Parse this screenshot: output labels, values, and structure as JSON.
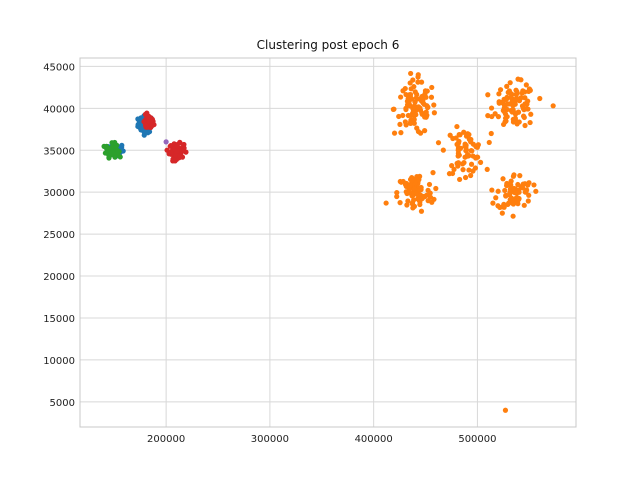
{
  "chart_data": {
    "type": "scatter",
    "title": "Clustering post epoch 6",
    "xlabel": "",
    "ylabel": "",
    "xlim": [
      117000,
      595000
    ],
    "ylim": [
      2000,
      46000
    ],
    "xticks": [
      200000,
      300000,
      400000,
      500000
    ],
    "yticks": [
      5000,
      10000,
      15000,
      20000,
      25000,
      30000,
      35000,
      40000,
      45000
    ],
    "grid": true,
    "clusters": [
      {
        "color": "#1f77b4",
        "center": [
          180000,
          38100
        ],
        "spread": [
          3500,
          500
        ],
        "count": 60
      },
      {
        "color": "#d62728",
        "center": [
          183000,
          38300
        ],
        "spread": [
          2500,
          450
        ],
        "count": 45
      },
      {
        "color": "#1f77b4",
        "center": [
          152000,
          35000
        ],
        "spread": [
          3500,
          400
        ],
        "count": 50
      },
      {
        "color": "#2ca02c",
        "center": [
          148000,
          35000
        ],
        "spread": [
          3000,
          400
        ],
        "count": 60
      },
      {
        "color": "#d62728",
        "center": [
          210000,
          34900
        ],
        "spread": [
          3500,
          450
        ],
        "count": 90
      },
      {
        "color": "#ff7f0e",
        "center": [
          440000,
          40000
        ],
        "spread": [
          10000,
          1600
        ],
        "count": 95
      },
      {
        "color": "#ff7f0e",
        "center": [
          536000,
          40300
        ],
        "spread": [
          10000,
          1300
        ],
        "count": 95
      },
      {
        "color": "#ff7f0e",
        "center": [
          488000,
          34900
        ],
        "spread": [
          9000,
          1300
        ],
        "count": 70
      },
      {
        "color": "#ff7f0e",
        "center": [
          440000,
          29900
        ],
        "spread": [
          8500,
          1200
        ],
        "count": 80
      },
      {
        "color": "#ff7f0e",
        "center": [
          536000,
          30000
        ],
        "spread": [
          8500,
          1100
        ],
        "count": 70
      }
    ],
    "extra_points": [
      {
        "x": 200000,
        "y": 36000,
        "color": "#9467bd"
      },
      {
        "x": 527000,
        "y": 4000,
        "color": "#ff7f0e"
      },
      {
        "x": 443000,
        "y": 44000,
        "color": "#ff7f0e"
      },
      {
        "x": 573000,
        "y": 40300,
        "color": "#ff7f0e"
      },
      {
        "x": 412000,
        "y": 28700,
        "color": "#ff7f0e"
      },
      {
        "x": 524000,
        "y": 27500,
        "color": "#ff7f0e"
      }
    ]
  }
}
